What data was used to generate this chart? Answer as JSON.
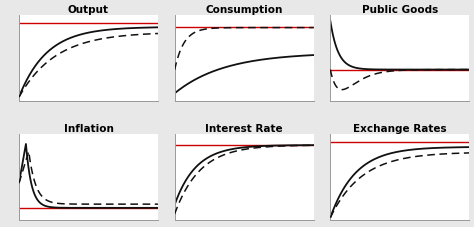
{
  "titles": [
    "Output",
    "Consumption",
    "Public Goods",
    "Inflation",
    "Interest Rate",
    "Exchange Rates"
  ],
  "background_color": "#e8e8e8",
  "panel_color": "#ffffff",
  "red_color": "#cc0000",
  "black_color": "#111111",
  "title_fontsize": 7.5
}
